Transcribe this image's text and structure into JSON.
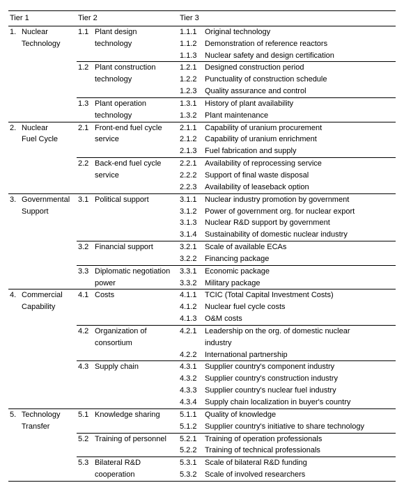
{
  "meta": {
    "text_color": "#000000",
    "bg_color": "#ffffff",
    "border_color": "#000000",
    "font_size_pt": 8
  },
  "headers": {
    "tier1": "Tier 1",
    "tier2": "Tier 2",
    "tier3": "Tier 3"
  },
  "tiers": [
    {
      "num": "1.",
      "label_lines": [
        "Nuclear",
        "Technology"
      ],
      "subs": [
        {
          "num": "1.1",
          "label_lines": [
            "Plant design",
            "technology"
          ],
          "items": [
            {
              "num": "1.1.1",
              "label": "Original technology"
            },
            {
              "num": "1.1.2",
              "label": "Demonstration of reference reactors"
            },
            {
              "num": "1.1.3",
              "label": "Nuclear safety and design certification"
            }
          ]
        },
        {
          "num": "1.2",
          "label_lines": [
            "Plant construction",
            "technology"
          ],
          "items": [
            {
              "num": "1.2.1",
              "label": "Designed construction period"
            },
            {
              "num": "1.2.2",
              "label": "Punctuality of construction schedule"
            },
            {
              "num": "1.2.3",
              "label": "Quality assurance and control"
            }
          ]
        },
        {
          "num": "1.3",
          "label_lines": [
            "Plant operation",
            "technology"
          ],
          "items": [
            {
              "num": "1.3.1",
              "label": "History of plant availability"
            },
            {
              "num": "1.3.2",
              "label": "Plant maintenance"
            }
          ]
        }
      ]
    },
    {
      "num": "2.",
      "label_lines": [
        "Nuclear",
        "Fuel Cycle"
      ],
      "subs": [
        {
          "num": "2.1",
          "label_lines": [
            "Front-end fuel cycle",
            "service"
          ],
          "items": [
            {
              "num": "2.1.1",
              "label": "Capability of uranium procurement"
            },
            {
              "num": "2.1.2",
              "label": "Capability of uranium enrichment"
            },
            {
              "num": "2.1.3",
              "label": "Fuel fabrication and supply"
            }
          ]
        },
        {
          "num": "2.2",
          "label_lines": [
            "Back-end fuel cycle",
            "service"
          ],
          "items": [
            {
              "num": "2.2.1",
              "label": "Availability of reprocessing service"
            },
            {
              "num": "2.2.2",
              "label": "Support of final waste disposal"
            },
            {
              "num": "2.2.3",
              "label": "Availability of leaseback option"
            }
          ]
        }
      ]
    },
    {
      "num": "3.",
      "label_lines": [
        "Governmental",
        "Support"
      ],
      "subs": [
        {
          "num": "3.1",
          "label_lines": [
            "Political support"
          ],
          "items": [
            {
              "num": "3.1.1",
              "label": "Nuclear industry promotion by government"
            },
            {
              "num": "3.1.2",
              "label": "Power of government org. for nuclear export"
            },
            {
              "num": "3.1.3",
              "label": "Nuclear R&D support by government"
            },
            {
              "num": "3.1.4",
              "label": "Sustainability of domestic nuclear industry"
            }
          ]
        },
        {
          "num": "3.2",
          "label_lines": [
            "Financial support"
          ],
          "items": [
            {
              "num": "3.2.1",
              "label": "Scale of available ECAs"
            },
            {
              "num": "3.2.2",
              "label": "Financing package"
            }
          ]
        },
        {
          "num": "3.3",
          "label_lines": [
            "Diplomatic negotiation",
            "power"
          ],
          "items": [
            {
              "num": "3.3.1",
              "label": "Economic package"
            },
            {
              "num": "3.3.2",
              "label": "Military package"
            }
          ]
        }
      ]
    },
    {
      "num": "4.",
      "label_lines": [
        "Commercial",
        "Capability"
      ],
      "subs": [
        {
          "num": "4.1",
          "label_lines": [
            "Costs"
          ],
          "items": [
            {
              "num": "4.1.1",
              "label": "TCIC (Total Capital Investment Costs)"
            },
            {
              "num": "4.1.2",
              "label": "Nuclear fuel cycle costs"
            },
            {
              "num": "4.1.3",
              "label": "O&M costs"
            }
          ]
        },
        {
          "num": "4.2",
          "label_lines": [
            "Organization of",
            "consortium"
          ],
          "items": [
            {
              "num": "4.2.1",
              "label_lines": [
                "Leadership on the org. of domestic nuclear",
                "industry"
              ]
            },
            {
              "num": "4.2.2",
              "label": "International partnership"
            }
          ]
        },
        {
          "num": "4.3",
          "label_lines": [
            "Supply chain"
          ],
          "items": [
            {
              "num": "4.3.1",
              "label": "Supplier country's component industry"
            },
            {
              "num": "4.3.2",
              "label": "Supplier country's construction industry"
            },
            {
              "num": "4.3.3",
              "label": "Supplier country's nuclear fuel industry"
            },
            {
              "num": "4.3.4",
              "label": "Supply chain localization in buyer's country"
            }
          ]
        }
      ]
    },
    {
      "num": "5.",
      "label_lines": [
        "Technology",
        "Transfer"
      ],
      "subs": [
        {
          "num": "5.1",
          "label_lines": [
            "Knowledge sharing"
          ],
          "items": [
            {
              "num": "5.1.1",
              "label": "Quality of knowledge"
            },
            {
              "num": "5.1.2",
              "label": "Supplier country's initiative to share technology"
            }
          ]
        },
        {
          "num": "5.2",
          "label_lines": [
            "Training of personnel"
          ],
          "items": [
            {
              "num": "5.2.1",
              "label": "Training of operation professionals"
            },
            {
              "num": "5.2.2",
              "label": "Training of technical professionals"
            }
          ]
        },
        {
          "num": "5.3",
          "label_lines": [
            "Bilateral R&D",
            "cooperation"
          ],
          "items": [
            {
              "num": "5.3.1",
              "label": "Scale of bilateral R&D funding"
            },
            {
              "num": "5.3.2",
              "label": "Scale of involved researchers"
            }
          ]
        }
      ]
    }
  ]
}
